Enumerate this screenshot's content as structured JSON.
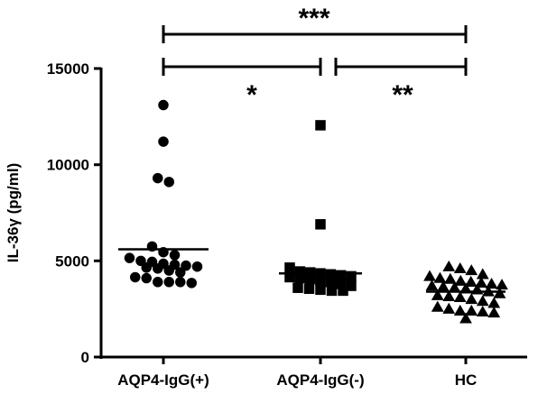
{
  "chart_data": {
    "type": "scatter",
    "title": "",
    "xlabel": "",
    "ylabel": "IL-36γ (pg/ml)",
    "ylim": [
      0,
      15000
    ],
    "yticks": [
      0,
      5000,
      10000,
      15000
    ],
    "categories": [
      "AQP4-IgG(+)",
      "AQP4-IgG(-)",
      "HC"
    ],
    "series": [
      {
        "marker": "circle",
        "values": [
          13100,
          11200,
          9300,
          9100,
          5750,
          5450,
          5300,
          5150,
          5000,
          4950,
          4850,
          4800,
          4750,
          4700,
          4650,
          4600,
          4500,
          4400,
          4150,
          4100,
          3900,
          3900,
          3900,
          3850
        ],
        "mean": 5600
      },
      {
        "marker": "square",
        "values": [
          12050,
          6900,
          4650,
          4450,
          4400,
          4350,
          4300,
          4250,
          4200,
          4150,
          4100,
          4050,
          3950,
          3900,
          3800,
          3700,
          3600,
          3550,
          3500,
          3450,
          3450
        ],
        "mean": 4350
      },
      {
        "marker": "triangle",
        "values": [
          4700,
          4600,
          4500,
          4300,
          4200,
          4100,
          4050,
          3950,
          3900,
          3850,
          3800,
          3750,
          3700,
          3650,
          3600,
          3550,
          3500,
          3400,
          3300,
          3200,
          3150,
          3100,
          3000,
          2900,
          2800,
          2600,
          2500,
          2400,
          2400,
          2350,
          2300,
          2000
        ],
        "mean": 3400
      }
    ],
    "significance": [
      {
        "from": 0,
        "to": 2,
        "label": "***"
      },
      {
        "from": 0,
        "to": 1,
        "label": "*"
      },
      {
        "from": 1,
        "to": 2,
        "label": "**"
      }
    ],
    "grid": false,
    "colors": {
      "markers": "#000000",
      "axes": "#000000"
    }
  }
}
